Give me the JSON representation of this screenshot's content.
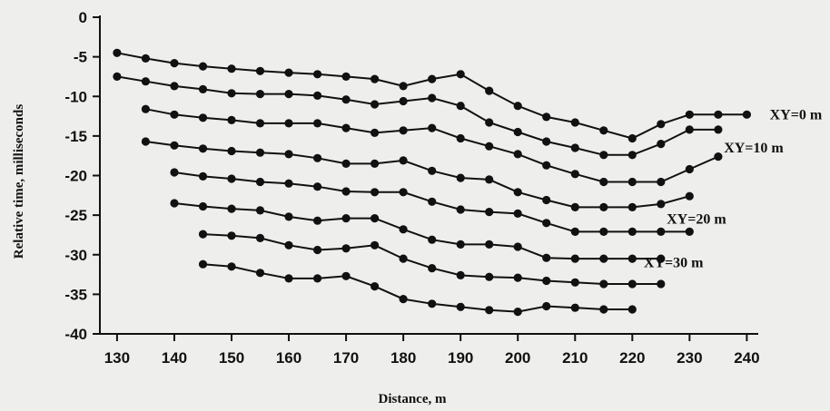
{
  "chart_data": {
    "type": "line",
    "xlabel": "Distance, m",
    "ylabel": "Relative time, milliseconds",
    "xlim": [
      127,
      242
    ],
    "ylim": [
      -40,
      0
    ],
    "xticks": [
      130,
      140,
      150,
      160,
      170,
      180,
      190,
      200,
      210,
      220,
      230,
      240
    ],
    "yticks": [
      0,
      -5,
      -10,
      -15,
      -20,
      -25,
      -30,
      -35,
      -40
    ],
    "grid": false,
    "line_color": "#111111",
    "annotations": [
      {
        "text": "XY=0 m",
        "x": 244,
        "y": -12.3
      },
      {
        "text": "XY=10 m",
        "x": 236,
        "y": -16.5
      },
      {
        "text": "XY=20 m",
        "x": 226,
        "y": -25.5
      },
      {
        "text": "XY=30 m",
        "x": 222,
        "y": -31.0
      }
    ],
    "series": [
      {
        "x": [
          130,
          135,
          140,
          145,
          150,
          155,
          160,
          165,
          170,
          175,
          180,
          185,
          190,
          195,
          200,
          205,
          210,
          215,
          220,
          225,
          230,
          235,
          240
        ],
        "values": [
          -4.5,
          -5.2,
          -5.8,
          -6.2,
          -6.5,
          -6.8,
          -7.0,
          -7.2,
          -7.5,
          -7.8,
          -8.7,
          -7.8,
          -7.2,
          -9.3,
          -11.2,
          -12.6,
          -13.3,
          -14.3,
          -15.3,
          -13.5,
          -12.3,
          -12.3,
          -12.3
        ]
      },
      {
        "x": [
          130,
          135,
          140,
          145,
          150,
          155,
          160,
          165,
          170,
          175,
          180,
          185,
          190,
          195,
          200,
          205,
          210,
          215,
          220,
          225,
          230,
          235
        ],
        "values": [
          -7.5,
          -8.1,
          -8.7,
          -9.1,
          -9.6,
          -9.7,
          -9.7,
          -9.9,
          -10.4,
          -11.0,
          -10.6,
          -10.2,
          -11.2,
          -13.3,
          -14.5,
          -15.7,
          -16.5,
          -17.4,
          -17.4,
          -16.0,
          -14.2,
          -14.2
        ]
      },
      {
        "x": [
          135,
          140,
          145,
          150,
          155,
          160,
          165,
          170,
          175,
          180,
          185,
          190,
          195,
          200,
          205,
          210,
          215,
          220,
          225,
          230,
          235
        ],
        "values": [
          -11.6,
          -12.3,
          -12.7,
          -13.0,
          -13.4,
          -13.4,
          -13.4,
          -14.0,
          -14.6,
          -14.3,
          -14.0,
          -15.3,
          -16.3,
          -17.3,
          -18.7,
          -19.8,
          -20.8,
          -20.8,
          -20.8,
          -19.2,
          -17.6
        ]
      },
      {
        "x": [
          135,
          140,
          145,
          150,
          155,
          160,
          165,
          170,
          175,
          180,
          185,
          190,
          195,
          200,
          205,
          210,
          215,
          220,
          225,
          230
        ],
        "values": [
          -15.7,
          -16.2,
          -16.6,
          -16.9,
          -17.1,
          -17.3,
          -17.8,
          -18.5,
          -18.5,
          -18.1,
          -19.4,
          -20.3,
          -20.5,
          -22.1,
          -23.1,
          -24.0,
          -24.0,
          -24.0,
          -23.6,
          -22.6
        ]
      },
      {
        "x": [
          140,
          145,
          150,
          155,
          160,
          165,
          170,
          175,
          180,
          185,
          190,
          195,
          200,
          205,
          210,
          215,
          220,
          225,
          230
        ],
        "values": [
          -19.6,
          -20.1,
          -20.4,
          -20.8,
          -21.0,
          -21.4,
          -22.0,
          -22.1,
          -22.1,
          -23.3,
          -24.3,
          -24.6,
          -24.8,
          -26.0,
          -27.1,
          -27.1,
          -27.1,
          -27.1,
          -27.1
        ]
      },
      {
        "x": [
          140,
          145,
          150,
          155,
          160,
          165,
          170,
          175,
          180,
          185,
          190,
          195,
          200,
          205,
          210,
          215,
          220,
          225
        ],
        "values": [
          -23.5,
          -23.9,
          -24.2,
          -24.4,
          -25.2,
          -25.7,
          -25.4,
          -25.4,
          -26.8,
          -28.1,
          -28.7,
          -28.7,
          -29.0,
          -30.4,
          -30.5,
          -30.5,
          -30.5,
          -30.5
        ]
      },
      {
        "x": [
          145,
          150,
          155,
          160,
          165,
          170,
          175,
          180,
          185,
          190,
          195,
          200,
          205,
          210,
          215,
          220,
          225
        ],
        "values": [
          -27.4,
          -27.6,
          -27.9,
          -28.8,
          -29.4,
          -29.2,
          -28.8,
          -30.5,
          -31.7,
          -32.6,
          -32.8,
          -32.9,
          -33.3,
          -33.5,
          -33.7,
          -33.7,
          -33.7
        ]
      },
      {
        "x": [
          145,
          150,
          155,
          160,
          165,
          170,
          175,
          180,
          185,
          190,
          195,
          200,
          205,
          210,
          215,
          220
        ],
        "values": [
          -31.2,
          -31.5,
          -32.3,
          -33.0,
          -33.0,
          -32.7,
          -34.0,
          -35.6,
          -36.2,
          -36.6,
          -37.0,
          -37.2,
          -36.5,
          -36.7,
          -36.9,
          -36.9
        ]
      }
    ]
  }
}
